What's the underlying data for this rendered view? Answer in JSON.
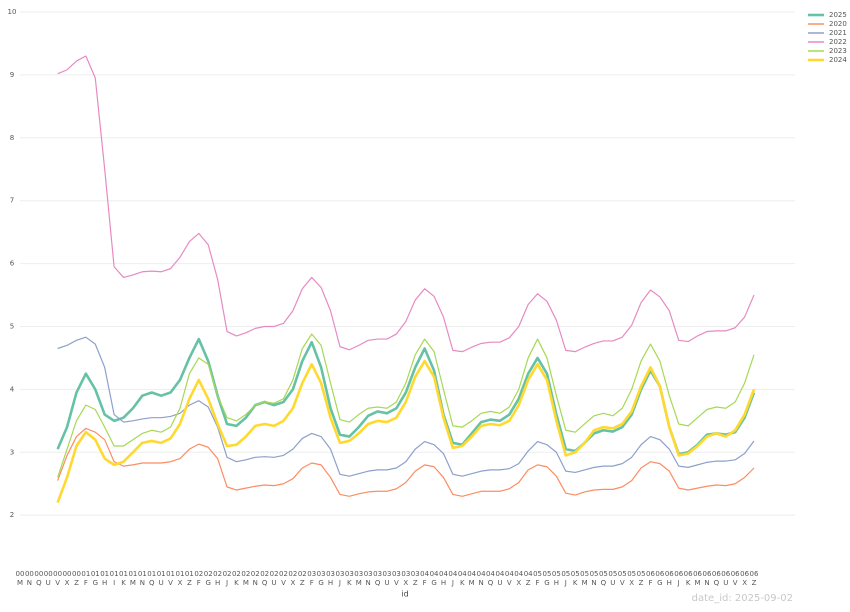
{
  "chart_data": {
    "type": "line",
    "x_label": "id",
    "annotation": "date_id: 2025-09-02",
    "categories": [
      "00 M",
      "00 N",
      "00 Q",
      "00 U",
      "00 V",
      "00 X",
      "00 Z",
      "01 F",
      "01 G",
      "01 H",
      "01 I",
      "01 K",
      "01 M",
      "01 N",
      "01 Q",
      "01 U",
      "01 V",
      "01 X",
      "01 Z",
      "02 F",
      "02 G",
      "02 H",
      "02 J",
      "02 K",
      "02 M",
      "02 N",
      "02 Q",
      "02 U",
      "02 V",
      "02 X",
      "02 Z",
      "03 F",
      "03 G",
      "03 H",
      "03 J",
      "03 K",
      "03 M",
      "03 N",
      "03 Q",
      "03 U",
      "03 V",
      "03 X",
      "03 Z",
      "04 F",
      "04 G",
      "04 H",
      "04 J",
      "04 K",
      "04 M",
      "04 N",
      "04 Q",
      "04 U",
      "04 V",
      "04 X",
      "04 Z",
      "05 F",
      "05 G",
      "05 H",
      "05 J",
      "05 K",
      "05 M",
      "05 N",
      "05 Q",
      "05 U",
      "05 V",
      "05 X",
      "05 Z",
      "06 F",
      "06 G",
      "06 H",
      "06 J",
      "06 K",
      "06 M",
      "06 N",
      "06 Q",
      "06 U",
      "06 V",
      "06 X",
      "06 Z"
    ],
    "ylim": [
      1.2,
      10
    ],
    "yticks": [
      2,
      3,
      4,
      5,
      6,
      7,
      8,
      9,
      10
    ],
    "grid": true,
    "legend": "top-right",
    "series": [
      {
        "name": "2025",
        "color": "#66c2a5",
        "values": [
          null,
          null,
          null,
          null,
          3.05,
          3.4,
          3.95,
          4.25,
          4.0,
          3.6,
          3.5,
          3.55,
          3.7,
          3.9,
          3.95,
          3.9,
          3.95,
          4.15,
          4.5,
          4.8,
          4.45,
          3.9,
          3.45,
          3.42,
          3.55,
          3.75,
          3.8,
          3.75,
          3.8,
          4.0,
          4.45,
          4.75,
          4.35,
          3.7,
          3.28,
          3.25,
          3.4,
          3.58,
          3.65,
          3.62,
          3.7,
          3.95,
          4.35,
          4.65,
          4.3,
          3.6,
          3.15,
          3.12,
          3.3,
          3.48,
          3.52,
          3.5,
          3.6,
          3.85,
          4.25,
          4.5,
          4.25,
          3.6,
          3.05,
          3.02,
          3.15,
          3.3,
          3.35,
          3.33,
          3.4,
          3.6,
          4.0,
          4.3,
          4.05,
          3.4,
          2.97,
          3.0,
          3.12,
          3.28,
          3.3,
          3.28,
          3.32,
          3.55,
          3.95
        ]
      },
      {
        "name": "2020",
        "color": "#fc8d62",
        "values": [
          null,
          null,
          null,
          null,
          2.55,
          2.95,
          3.25,
          3.38,
          3.32,
          3.2,
          2.85,
          2.78,
          2.8,
          2.83,
          2.83,
          2.83,
          2.85,
          2.9,
          3.05,
          3.13,
          3.08,
          2.9,
          2.45,
          2.4,
          2.43,
          2.46,
          2.48,
          2.47,
          2.5,
          2.58,
          2.75,
          2.83,
          2.8,
          2.6,
          2.33,
          2.3,
          2.34,
          2.37,
          2.38,
          2.38,
          2.42,
          2.52,
          2.7,
          2.8,
          2.77,
          2.6,
          2.33,
          2.3,
          2.34,
          2.38,
          2.38,
          2.38,
          2.42,
          2.52,
          2.72,
          2.8,
          2.77,
          2.62,
          2.35,
          2.32,
          2.37,
          2.4,
          2.41,
          2.41,
          2.45,
          2.55,
          2.75,
          2.85,
          2.82,
          2.7,
          2.43,
          2.4,
          2.43,
          2.46,
          2.48,
          2.47,
          2.5,
          2.6,
          2.75
        ]
      },
      {
        "name": "2021",
        "color": "#8da0cb",
        "values": [
          null,
          null,
          null,
          null,
          4.65,
          4.7,
          4.78,
          4.83,
          4.72,
          4.35,
          3.6,
          3.48,
          3.5,
          3.53,
          3.55,
          3.55,
          3.57,
          3.62,
          3.75,
          3.82,
          3.72,
          3.4,
          2.92,
          2.85,
          2.88,
          2.92,
          2.93,
          2.92,
          2.95,
          3.05,
          3.22,
          3.3,
          3.25,
          3.05,
          2.65,
          2.62,
          2.66,
          2.7,
          2.72,
          2.72,
          2.75,
          2.85,
          3.05,
          3.17,
          3.12,
          2.98,
          2.65,
          2.62,
          2.66,
          2.7,
          2.72,
          2.72,
          2.74,
          2.82,
          3.02,
          3.17,
          3.12,
          3.0,
          2.7,
          2.68,
          2.72,
          2.76,
          2.78,
          2.78,
          2.82,
          2.92,
          3.12,
          3.25,
          3.2,
          3.05,
          2.78,
          2.76,
          2.8,
          2.84,
          2.86,
          2.86,
          2.88,
          2.98,
          3.18
        ]
      },
      {
        "name": "2022",
        "color": "#e78ac3",
        "values": [
          null,
          null,
          null,
          null,
          9.02,
          9.08,
          9.22,
          9.3,
          8.95,
          7.5,
          5.95,
          5.78,
          5.82,
          5.87,
          5.88,
          5.87,
          5.92,
          6.1,
          6.35,
          6.48,
          6.3,
          5.75,
          4.92,
          4.85,
          4.9,
          4.97,
          5.0,
          5.0,
          5.05,
          5.25,
          5.6,
          5.78,
          5.62,
          5.25,
          4.68,
          4.63,
          4.7,
          4.78,
          4.8,
          4.8,
          4.88,
          5.08,
          5.42,
          5.6,
          5.48,
          5.15,
          4.62,
          4.6,
          4.67,
          4.73,
          4.75,
          4.75,
          4.82,
          5.0,
          5.35,
          5.52,
          5.4,
          5.1,
          4.62,
          4.6,
          4.67,
          4.73,
          4.77,
          4.77,
          4.83,
          5.02,
          5.38,
          5.58,
          5.47,
          5.25,
          4.78,
          4.76,
          4.85,
          4.92,
          4.93,
          4.93,
          4.98,
          5.15,
          5.5
        ]
      },
      {
        "name": "2023",
        "color": "#a6d854",
        "values": [
          null,
          null,
          null,
          null,
          2.6,
          3.05,
          3.5,
          3.75,
          3.68,
          3.4,
          3.1,
          3.1,
          3.2,
          3.3,
          3.35,
          3.32,
          3.4,
          3.7,
          4.25,
          4.5,
          4.4,
          3.9,
          3.55,
          3.5,
          3.6,
          3.75,
          3.8,
          3.78,
          3.85,
          4.15,
          4.65,
          4.88,
          4.7,
          4.1,
          3.52,
          3.48,
          3.6,
          3.7,
          3.72,
          3.7,
          3.8,
          4.1,
          4.55,
          4.8,
          4.6,
          4.0,
          3.42,
          3.4,
          3.5,
          3.62,
          3.65,
          3.62,
          3.72,
          4.0,
          4.5,
          4.8,
          4.5,
          3.9,
          3.35,
          3.32,
          3.45,
          3.58,
          3.62,
          3.58,
          3.7,
          4.0,
          4.45,
          4.72,
          4.45,
          3.9,
          3.45,
          3.42,
          3.55,
          3.68,
          3.72,
          3.7,
          3.8,
          4.1,
          4.55
        ]
      },
      {
        "name": "2024",
        "color": "#ffd92f",
        "values": [
          null,
          null,
          null,
          null,
          2.2,
          2.6,
          3.1,
          3.32,
          3.2,
          2.9,
          2.8,
          2.85,
          3.0,
          3.15,
          3.18,
          3.15,
          3.22,
          3.45,
          3.85,
          4.15,
          3.85,
          3.45,
          3.1,
          3.12,
          3.25,
          3.42,
          3.45,
          3.42,
          3.5,
          3.7,
          4.1,
          4.4,
          4.1,
          3.55,
          3.15,
          3.18,
          3.3,
          3.45,
          3.5,
          3.48,
          3.55,
          3.8,
          4.2,
          4.45,
          4.2,
          3.55,
          3.07,
          3.1,
          3.25,
          3.42,
          3.45,
          3.43,
          3.5,
          3.75,
          4.15,
          4.4,
          4.15,
          3.5,
          2.95,
          3.0,
          3.15,
          3.35,
          3.4,
          3.38,
          3.45,
          3.65,
          4.05,
          4.35,
          4.05,
          3.4,
          2.95,
          2.98,
          3.1,
          3.25,
          3.3,
          3.25,
          3.35,
          3.6,
          4.0
        ]
      }
    ]
  }
}
